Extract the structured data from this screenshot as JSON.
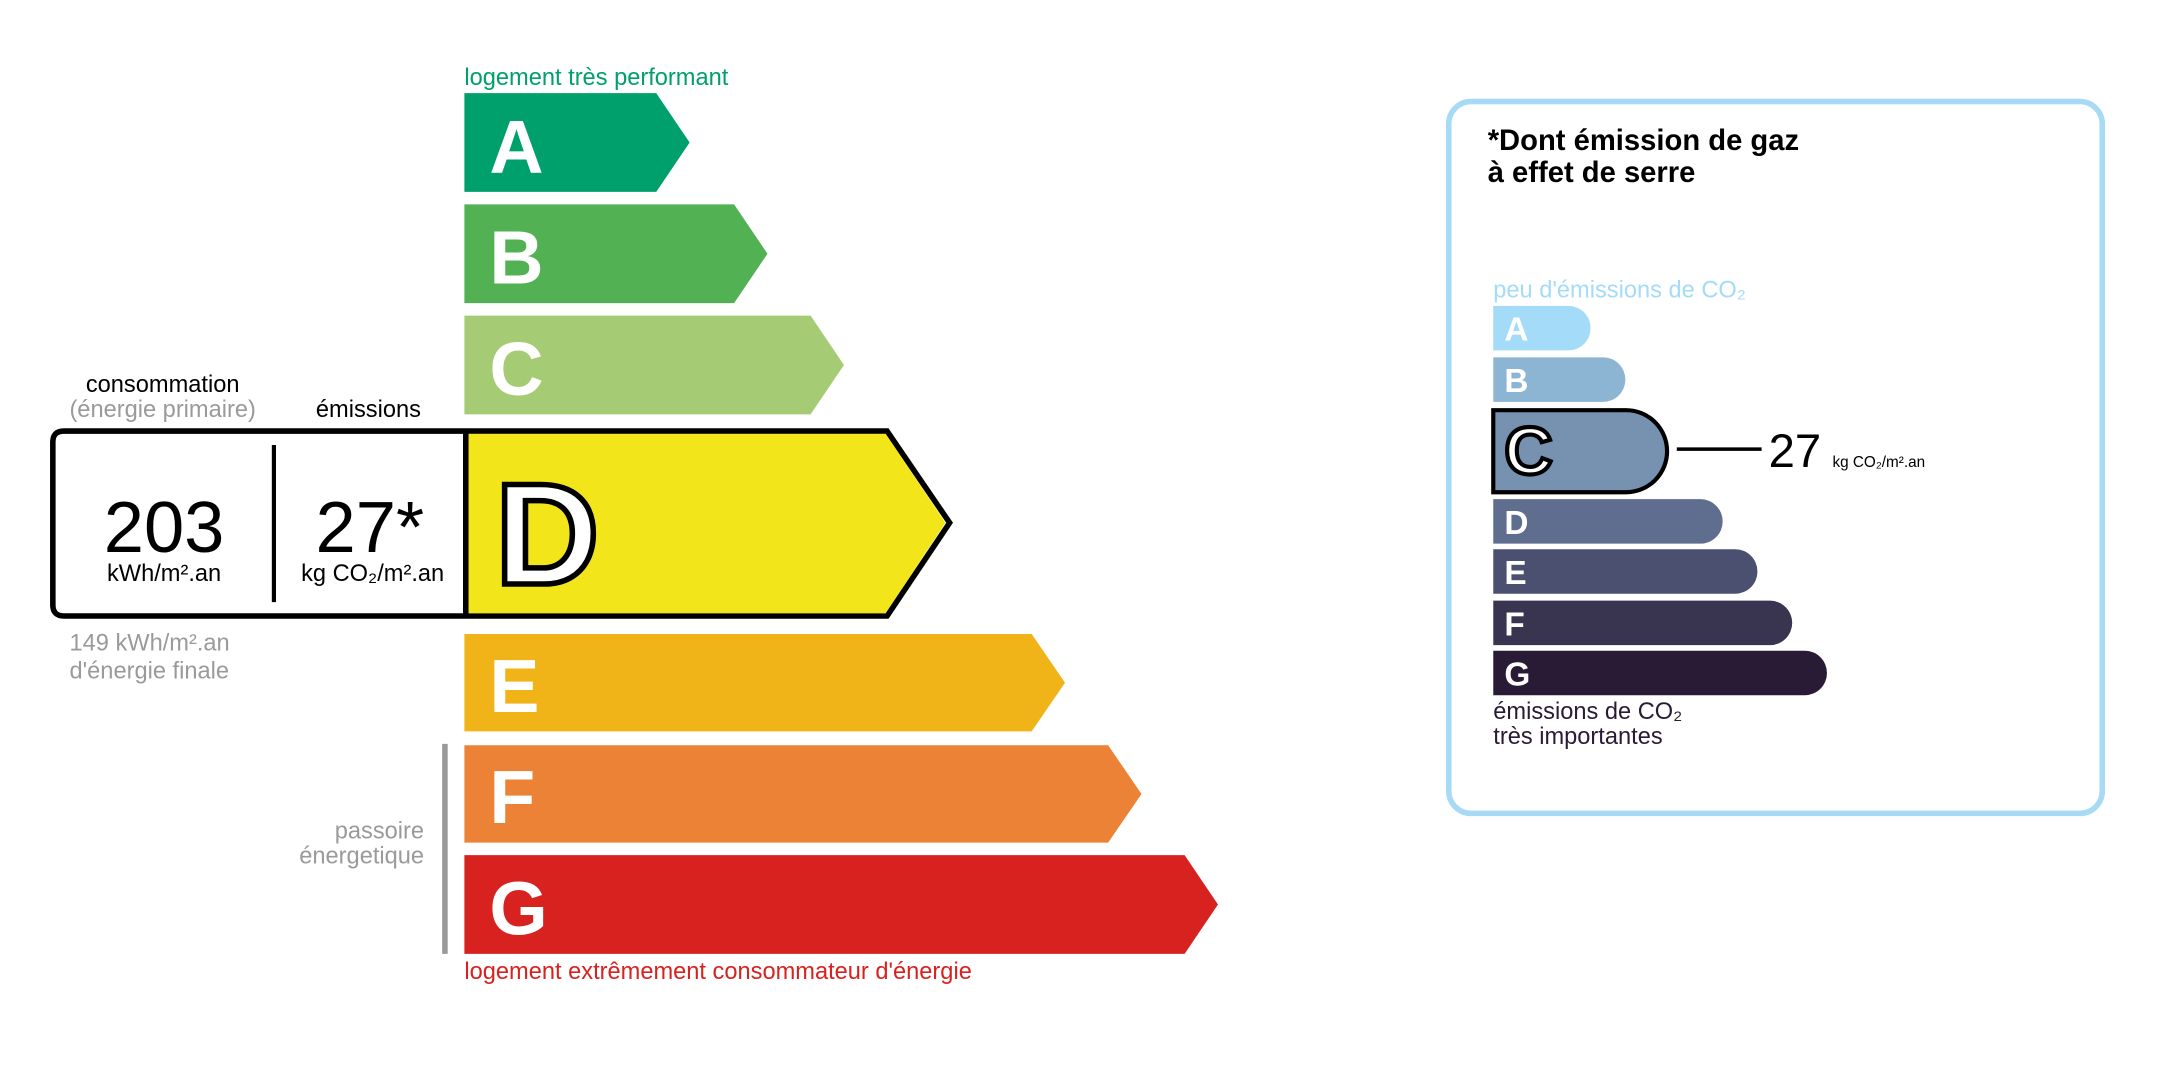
{
  "energy": {
    "top_label": "logement très performant",
    "bottom_label": "logement extrêmement consommateur d'énergie",
    "passoire": [
      "passoire",
      "énergetique"
    ],
    "classes": [
      {
        "letter": "A",
        "color": "#00a06d"
      },
      {
        "letter": "B",
        "color": "#52b153"
      },
      {
        "letter": "C",
        "color": "#a5cc74"
      },
      {
        "letter": "D",
        "color": "#f2e61b"
      },
      {
        "letter": "E",
        "color": "#f0b418"
      },
      {
        "letter": "F",
        "color": "#eb8235"
      },
      {
        "letter": "G",
        "color": "#d7221f"
      }
    ],
    "current_class": "D",
    "consumption_header": "consommation",
    "consumption_sub": "(énergie primaire)",
    "emissions_header": "émissions",
    "consumption_value": "203",
    "consumption_unit": "kWh/m².an",
    "emissions_value": "27*",
    "emissions_unit": "kg CO₂/m².an",
    "final_energy": [
      "149 kWh/m².an",
      "d'énergie finale"
    ]
  },
  "ghg": {
    "title": [
      "*Dont émission de gaz",
      "à effet de serre"
    ],
    "top_label": "peu d'émissions de CO₂",
    "bottom_label": [
      "émissions de CO₂",
      "très importantes"
    ],
    "classes": [
      {
        "letter": "A",
        "color": "#a4dbf8"
      },
      {
        "letter": "B",
        "color": "#8cb4d3"
      },
      {
        "letter": "C",
        "color": "#7792b1"
      },
      {
        "letter": "D",
        "color": "#5f6e8f"
      },
      {
        "letter": "E",
        "color": "#4b5070"
      },
      {
        "letter": "F",
        "color": "#393550"
      },
      {
        "letter": "G",
        "color": "#291b35"
      }
    ],
    "current_class": "C",
    "value": "27",
    "unit": "kg CO₂/m².an",
    "border_color": "#a6daf5"
  }
}
